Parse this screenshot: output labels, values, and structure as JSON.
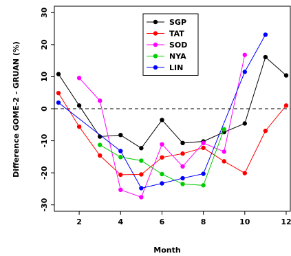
{
  "chart_data": {
    "type": "line",
    "title": "",
    "xlabel": "Month",
    "ylabel": "Difference GOME-2 - GRUAN (%)",
    "xlim": [
      0.8,
      12.2
    ],
    "ylim": [
      -32,
      32
    ],
    "xticks": [
      2,
      4,
      6,
      8,
      10,
      12
    ],
    "yticks": [
      -30,
      -20,
      -10,
      0,
      10,
      20,
      30
    ],
    "reference_line": {
      "y": 0,
      "style": "dashed"
    },
    "grid": false,
    "legend_position": "top-center",
    "series": [
      {
        "name": "SGP",
        "color": "#000000",
        "x": [
          1,
          2,
          3,
          4,
          5,
          6,
          7,
          8,
          9,
          10,
          11,
          12
        ],
        "y": [
          10.8,
          1.0,
          -8.7,
          -8.2,
          -12.3,
          -3.5,
          -10.7,
          -10.2,
          -7.3,
          -4.6,
          16.1,
          10.4
        ]
      },
      {
        "name": "TAT",
        "color": "#ff0000",
        "x": [
          1,
          2,
          3,
          4,
          5,
          6,
          7,
          8,
          9,
          10,
          11,
          12
        ],
        "y": [
          4.9,
          -5.6,
          -14.6,
          -20.6,
          -20.5,
          -15.2,
          -14.0,
          -12.2,
          -16.4,
          -20.1,
          -6.9,
          1.0
        ]
      },
      {
        "name": "SOD",
        "color": "#ff00ff",
        "x": [
          2,
          3,
          4,
          5,
          6,
          7,
          8,
          9,
          10
        ],
        "y": [
          9.6,
          2.5,
          -25.3,
          -27.6,
          -11.1,
          -18.0,
          -10.7,
          -13.4,
          16.8
        ]
      },
      {
        "name": "NYA",
        "color": "#00cc00",
        "x": [
          3,
          4,
          5,
          6,
          7,
          8,
          9
        ],
        "y": [
          -11.3,
          -15.1,
          -16.2,
          -20.4,
          -23.5,
          -23.9,
          -6.4
        ]
      },
      {
        "name": "LIN",
        "color": "#0000ff",
        "x": [
          1,
          4,
          5,
          6,
          7,
          8,
          10,
          11
        ],
        "y": [
          1.9,
          -13.2,
          -24.8,
          -23.3,
          -21.7,
          -20.3,
          11.5,
          23.1
        ]
      }
    ]
  }
}
